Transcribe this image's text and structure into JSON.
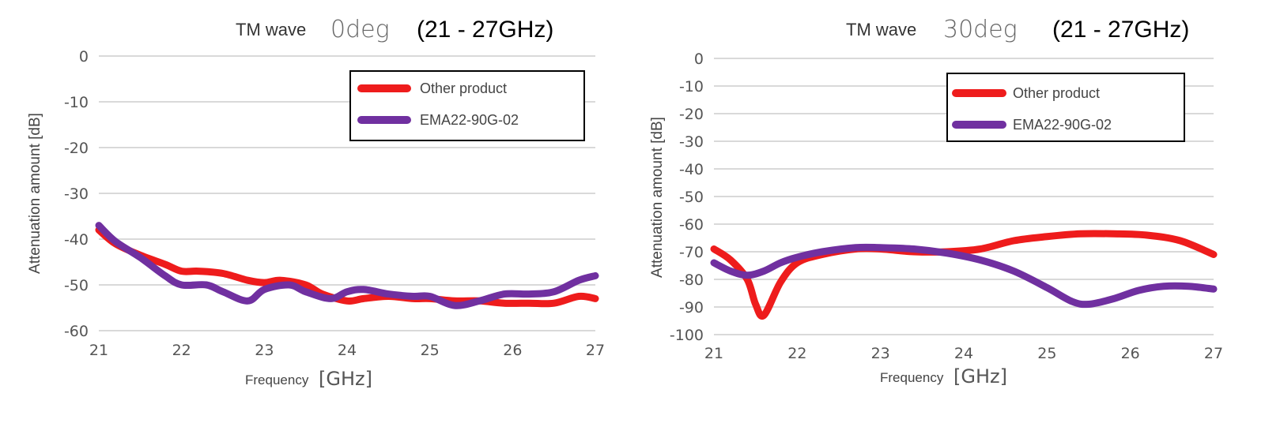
{
  "chart_data": [
    {
      "type": "line",
      "title": {
        "prefix": "TM wave",
        "angle": "0deg",
        "range": "(21 - 27GHz)"
      },
      "xlabel": {
        "text": "Frequency",
        "unit": "[GHz]"
      },
      "ylabel": "Attenuation amount [dB]",
      "xlim": [
        21,
        27
      ],
      "ylim": [
        -60,
        0
      ],
      "xticks": [
        21,
        22,
        23,
        24,
        25,
        26,
        27
      ],
      "yticks": [
        0,
        -10,
        -20,
        -30,
        -40,
        -50,
        -60
      ],
      "grid": true,
      "legend_position": "top-right",
      "series": [
        {
          "name": "Other product",
          "color": "#ee1c1c",
          "x": [
            21,
            21.2,
            21.5,
            21.8,
            22.0,
            22.2,
            22.5,
            22.8,
            23.0,
            23.2,
            23.5,
            23.7,
            24.0,
            24.2,
            24.5,
            24.8,
            25.0,
            25.3,
            25.6,
            25.9,
            26.2,
            26.5,
            26.8,
            27.0
          ],
          "y": [
            -38,
            -41,
            -43.5,
            -45.5,
            -47,
            -47,
            -47.5,
            -49,
            -49.5,
            -49,
            -50,
            -52,
            -53.5,
            -53,
            -52.5,
            -53,
            -53,
            -53.5,
            -53.5,
            -54,
            -54,
            -54,
            -52.5,
            -53
          ]
        },
        {
          "name": "EMA22-90G-02",
          "color": "#7030a0",
          "x": [
            21,
            21.2,
            21.5,
            21.8,
            22.0,
            22.3,
            22.5,
            22.8,
            23.0,
            23.3,
            23.5,
            23.8,
            24.0,
            24.2,
            24.5,
            24.8,
            25.0,
            25.3,
            25.6,
            25.9,
            26.2,
            26.5,
            26.8,
            27.0
          ],
          "y": [
            -37,
            -40.5,
            -44,
            -48,
            -50,
            -50,
            -51.5,
            -53.5,
            -51,
            -50,
            -51.5,
            -53,
            -51.5,
            -51,
            -52,
            -52.5,
            -52.5,
            -54.5,
            -53.5,
            -52,
            -52,
            -51.5,
            -49,
            -48
          ]
        }
      ]
    },
    {
      "type": "line",
      "title": {
        "prefix": "TM wave",
        "angle": "30deg",
        "range": "(21 - 27GHz)"
      },
      "xlabel": {
        "text": "Frequency",
        "unit": "[GHz]"
      },
      "ylabel": "Attenuation amount [dB]",
      "xlim": [
        21,
        27
      ],
      "ylim": [
        -100,
        0
      ],
      "xticks": [
        21,
        22,
        23,
        24,
        25,
        26,
        27
      ],
      "yticks": [
        0,
        -10,
        -20,
        -30,
        -40,
        -50,
        -60,
        -70,
        -80,
        -90,
        -100
      ],
      "grid": true,
      "legend_position": "top-right",
      "series": [
        {
          "name": "Other product",
          "color": "#ee1c1c",
          "x": [
            21,
            21.2,
            21.4,
            21.5,
            21.6,
            21.8,
            22.0,
            22.3,
            22.7,
            23.0,
            23.4,
            23.8,
            24.2,
            24.6,
            25.0,
            25.4,
            25.8,
            26.2,
            26.6,
            27.0
          ],
          "y": [
            -69,
            -73,
            -80,
            -89,
            -93,
            -81,
            -74,
            -71,
            -69,
            -69,
            -70,
            -70,
            -69,
            -66,
            -64.5,
            -63.5,
            -63.5,
            -64,
            -66,
            -71
          ]
        },
        {
          "name": "EMA22-90G-02",
          "color": "#7030a0",
          "x": [
            21,
            21.2,
            21.4,
            21.6,
            21.8,
            22.0,
            22.3,
            22.7,
            23.0,
            23.4,
            23.8,
            24.2,
            24.6,
            25.0,
            25.3,
            25.5,
            25.8,
            26.1,
            26.4,
            26.7,
            27.0
          ],
          "y": [
            -74,
            -77,
            -78.5,
            -77,
            -74,
            -72,
            -70,
            -68.5,
            -68.5,
            -69,
            -70.5,
            -73,
            -77,
            -83,
            -88,
            -89,
            -87,
            -84,
            -82.5,
            -82.5,
            -83.5
          ]
        }
      ]
    }
  ]
}
